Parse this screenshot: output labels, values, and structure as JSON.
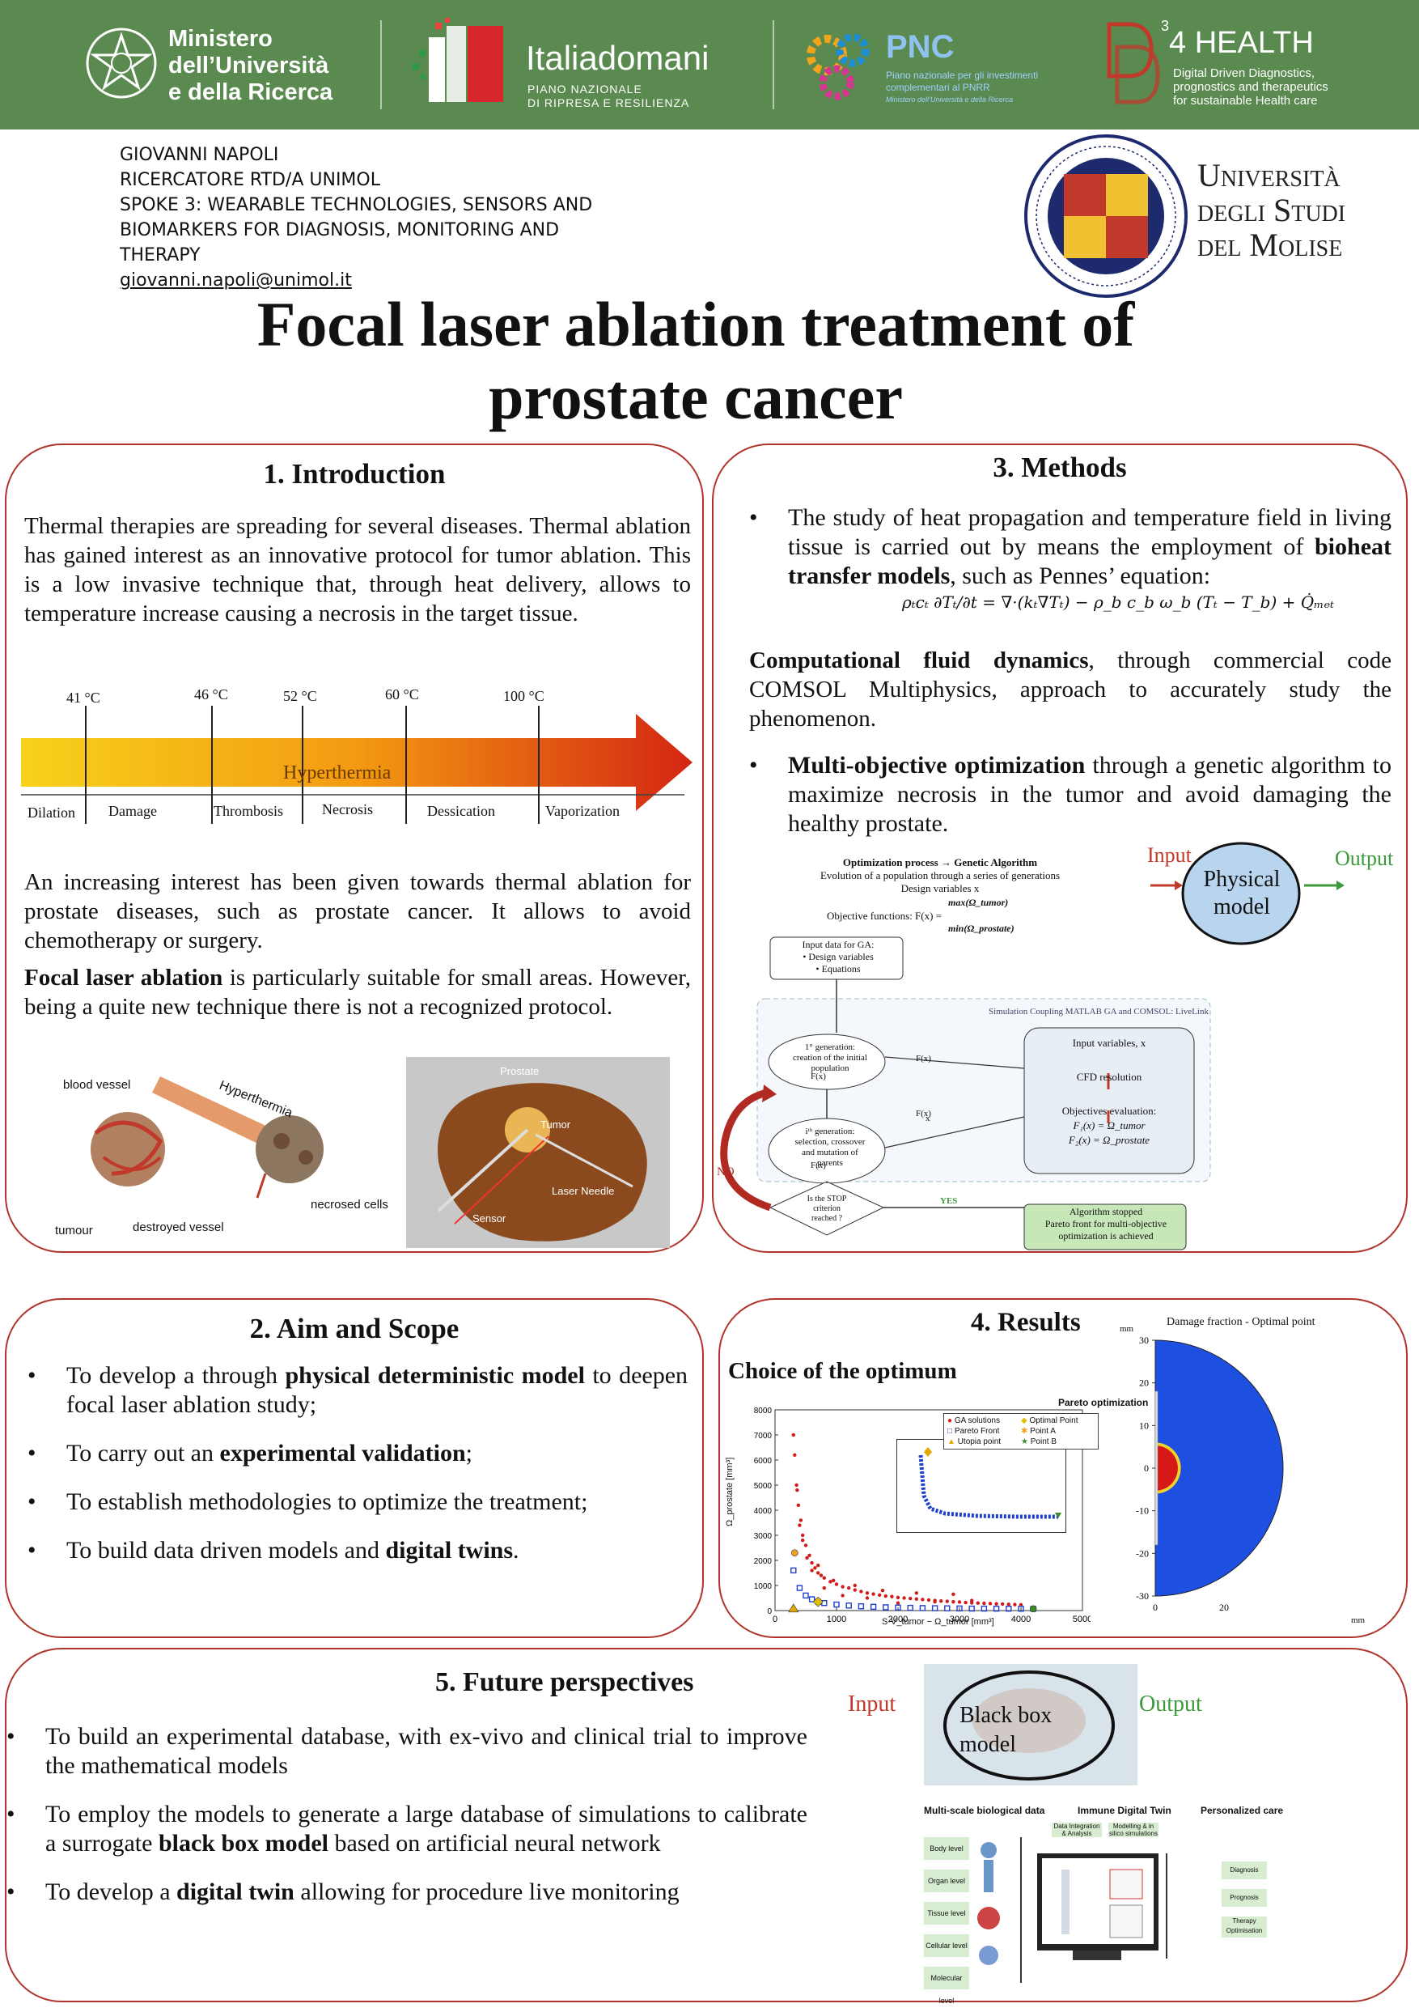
{
  "header": {
    "mur": [
      "Ministero",
      "dell’Università",
      "e della Ricerca"
    ],
    "italia_main": "Italiadomani",
    "italia_sub": [
      "PIANO NAZIONALE",
      "DI RIPRESA E RESILIENZA"
    ],
    "pnc_main": "PNC",
    "pnc_sub": [
      "Piano nazionale per gli investimenti",
      "complementari al PNRR",
      "Ministero dell’Università e della Ricerca"
    ],
    "d34_main": "4 HEALTH",
    "d34_sup": "3",
    "d34_sub": [
      "Digital Driven Diagnostics,",
      "prognostics and therapeutics",
      "for sustainable Health care"
    ],
    "colors": {
      "bar": "#5a8a4f",
      "accent_red": "#b0342b"
    }
  },
  "author": {
    "name": "GIOVANNI NAPOLI",
    "role": "RICERCATORE RTD/A UNIMOL",
    "spoke": "SPOKE 3: WEARABLE TECHNOLOGIES, SENSORS AND BIOMARKERS FOR DIAGNOSIS, MONITORING AND THERAPY",
    "email": "giovanni.napoli@unimol.it"
  },
  "university": {
    "lines": [
      "Università",
      "degli Studi",
      "del Molise"
    ]
  },
  "title": [
    "Focal laser ablation treatment of",
    "prostate cancer"
  ],
  "introduction": {
    "heading": "1. Introduction",
    "p1": "Thermal therapies are spreading for several diseases. Thermal ablation has gained interest as an innovative protocol for tumor ablation. This is a low invasive technique that, through heat delivery, allows to temperature increase causing a necrosis in the target tissue.",
    "temps": [
      "41 °C",
      "46 °C",
      "52 °C",
      "60 °C",
      "100 °C"
    ],
    "arrow_label": "Hyperthermia",
    "stages": [
      "Dilation",
      "Damage",
      "Thrombosis",
      "Necrosis",
      "Dessication",
      "Vaporization"
    ],
    "p2": "An increasing interest has been given towards thermal ablation for prostate diseases, such as prostate cancer. It allows to avoid chemotherapy or surgery.",
    "p3_bold": "Focal laser ablation",
    "p3_rest": " is particularly suitable for small areas. However, being a quite new technique there is not a recognized protocol.",
    "fig1_labels": {
      "blood_vessel": "blood vessel",
      "hyperthermia": "Hyperthermia",
      "necrosed": "necrosed cells",
      "tumour": "tumour",
      "destroyed": "destroyed vessel"
    },
    "fig2_labels": {
      "prostate": "Prostate",
      "tumor": "Tumor",
      "laser": "Laser Needle",
      "sensor": "Sensor"
    }
  },
  "aim": {
    "heading": "2. Aim and Scope",
    "items": [
      {
        "pre": "To develop a through ",
        "bold": "physical deterministic model",
        "post": " to deepen focal laser ablation study;"
      },
      {
        "pre": "To carry out an ",
        "bold": "experimental validation",
        "post": ";"
      },
      {
        "pre": "To establish methodologies to optimize the treatment;",
        "bold": "",
        "post": ""
      },
      {
        "pre": "To build data driven models and ",
        "bold": "digital twins",
        "post": "."
      }
    ]
  },
  "methods": {
    "heading": "3. Methods",
    "b1_pre": "The study of heat propagation and temperature field in living tissue is carried out by means the employment of ",
    "b1_bold": "bioheat transfer models",
    "b1_post": ", such as Pennes’ equation:",
    "equation": "ρₜcₜ ∂Tₜ/∂t = ∇·(kₜ∇Tₜ) − ρ_b c_b ω_b (Tₜ − T_b) + Q̇ₘₑₜ",
    "cfd_bold": "Computational fluid dynamics",
    "cfd_rest": ", through commercial code COMSOL Multiphysics, approach to accurately study the phenomenon.",
    "b2_bold": "Multi-objective optimization",
    "b2_rest": " through a genetic algorithm to maximize necrosis in the tumor and avoid damaging the healthy prostate.",
    "physical": {
      "input": "Input",
      "box": [
        "Physical",
        "model"
      ],
      "output": "Output"
    },
    "flow": {
      "title": "Optimization process → Genetic Algorithm",
      "sub1": "Evolution of a population through a series of generations",
      "sub2": "Design variables x",
      "objective": "Objective functions: F(x) =",
      "max": "max(Ω_tumor)",
      "min": "min(Ω_prostate)",
      "input_box": [
        "Input data for GA:",
        "• Design variables",
        "• Equations"
      ],
      "coupling": "Simulation Coupling MATLAB GA and COMSOL: LiveLink",
      "gen1": [
        "1° generation:",
        "creation of the initial",
        "population"
      ],
      "geni": [
        "iᵗʰ generation:",
        "selection, crossover",
        "and mutation of",
        "parents"
      ],
      "stop": [
        "Is the STOP",
        "criterion",
        "reached ?"
      ],
      "right": [
        "Input variables, x",
        "CFD resolution",
        "Objectives evaluation:",
        "F₁(x) = Ω_tumor",
        "F₂(x) = Ω_prostate"
      ],
      "fx": "F(x)",
      "x": "x",
      "no": "NO",
      "yes": "YES",
      "end": [
        "Algorithm stopped",
        "Pareto front for multi-objective",
        "optimization is achieved"
      ]
    }
  },
  "results": {
    "heading": "4. Results",
    "subheading": "Choice of the optimum",
    "pareto_title": "Pareto optimization",
    "legend": [
      "GA solutions",
      "Pareto Front",
      "Utopia point",
      "Optimal Point",
      "Point A",
      "Point B"
    ],
    "ylabel": "Ω_prostate [mm³]",
    "xlabel": "S·V_tumor − Ω_tumor [mm³]",
    "damage_title": "Damage fraction - Optimal point",
    "unit_mm": "mm"
  },
  "chart_data": [
    {
      "type": "scatter",
      "title": "Pareto optimization",
      "xlabel": "S·V_tumor − Ω_tumor [mm³]",
      "ylabel": "Ω_prostate [mm³]",
      "xlim": [
        0,
        5000
      ],
      "ylim": [
        0,
        8000
      ],
      "xticks": [
        0,
        1000,
        2000,
        3000,
        4000,
        5000
      ],
      "yticks": [
        0,
        1000,
        2000,
        3000,
        4000,
        5000,
        6000,
        7000,
        8000
      ],
      "legend_position": "top-right",
      "series": [
        {
          "name": "GA solutions",
          "color": "#d11a1a",
          "x": [
            300,
            320,
            350,
            380,
            420,
            450,
            500,
            560,
            600,
            650,
            700,
            750,
            800,
            900,
            1000,
            1100,
            1200,
            1300,
            1400,
            1500,
            1600,
            1700,
            1800,
            1900,
            2000,
            2100,
            2200,
            2300,
            2400,
            2500,
            2600,
            2700,
            2800,
            2900,
            3000,
            3100,
            3200,
            3300,
            3400,
            3500,
            3600,
            3700,
            3800,
            3900,
            4000,
            360,
            400,
            450,
            520,
            600,
            700,
            800,
            950,
            1100,
            1300,
            1500,
            1750,
            2000,
            2300,
            2600,
            2900,
            3200
          ],
          "y": [
            7000,
            6200,
            5000,
            4200,
            3600,
            3000,
            2600,
            2200,
            1900,
            1700,
            1500,
            1400,
            1300,
            1150,
            1050,
            950,
            900,
            820,
            760,
            700,
            660,
            620,
            580,
            560,
            520,
            500,
            480,
            460,
            440,
            420,
            400,
            380,
            370,
            350,
            340,
            320,
            310,
            300,
            290,
            280,
            270,
            260,
            250,
            240,
            230,
            4800,
            3400,
            2800,
            2100,
            1600,
            1800,
            900,
            1200,
            600,
            1000,
            500,
            800,
            300,
            700,
            350,
            650,
            400
          ]
        },
        {
          "name": "Pareto Front",
          "color": "#1f3fcf",
          "x": [
            300,
            400,
            500,
            600,
            700,
            800,
            1000,
            1200,
            1400,
            1600,
            1800,
            2000,
            2200,
            2400,
            2600,
            2800,
            3000,
            3200,
            3400,
            3600,
            3800,
            4000,
            4200
          ],
          "y": [
            1600,
            900,
            600,
            450,
            350,
            300,
            240,
            200,
            170,
            150,
            130,
            120,
            110,
            100,
            95,
            90,
            85,
            80,
            78,
            76,
            74,
            72,
            70
          ]
        },
        {
          "name": "Utopia point",
          "color": "#e0a800",
          "x": [
            300
          ],
          "y": [
            70
          ]
        },
        {
          "name": "Optimal Point",
          "color": "#e0c000",
          "x": [
            700
          ],
          "y": [
            350
          ]
        },
        {
          "name": "Point A",
          "color": "#f2a020",
          "x": [
            320
          ],
          "y": [
            2300
          ]
        },
        {
          "name": "Point B",
          "color": "#3a8a2a",
          "x": [
            4200
          ],
          "y": [
            70
          ]
        }
      ]
    },
    {
      "type": "heatmap",
      "title": "Damage fraction - Optimal point",
      "xlabel": "mm",
      "ylabel": "mm",
      "xlim": [
        0,
        40
      ],
      "ylim": [
        -30,
        30
      ],
      "xticks": [
        0,
        20
      ],
      "yticks": [
        30,
        20,
        10,
        0,
        -10,
        -20,
        -30
      ]
    }
  ],
  "future": {
    "heading": "5. Future perspectives",
    "items": [
      {
        "pre": "To build an experimental database, with ex-vivo and clinical trial to improve the mathematical models",
        "bold": "",
        "post": ""
      },
      {
        "pre": "To employ the models to generate a large database of simulations to calibrate a surrogate ",
        "bold": "black box model",
        "post": " based on artificial neural network"
      },
      {
        "pre": "To develop a ",
        "bold": "digital twin",
        "post": " allowing for procedure live monitoring"
      }
    ],
    "blackbox": {
      "input": "Input",
      "box": [
        "Black box",
        "model"
      ],
      "output": "Output"
    },
    "twin": {
      "cols": [
        "Multi-scale biological data",
        "Immune Digital Twin",
        "Personalized care"
      ],
      "levels": [
        "Body level",
        "Organ level",
        "Tissue level",
        "Cellular level",
        "Molecular level"
      ],
      "mid": [
        "Data Integration & Analysis",
        "Modelling & in silico simulations"
      ],
      "care": [
        "Diagnosis",
        "Prognosis",
        "Therapy Optimisation"
      ]
    }
  }
}
